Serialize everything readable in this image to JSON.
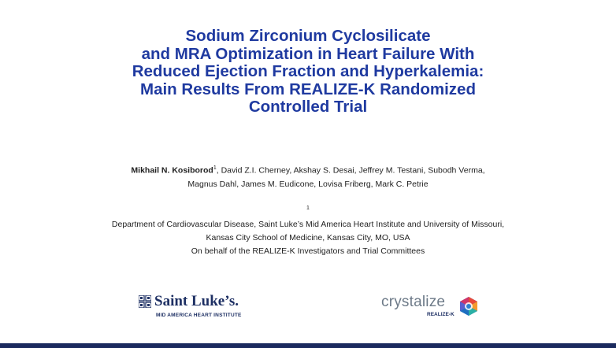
{
  "title": {
    "lines": [
      "Sodium Zirconium Cyclosilicate",
      "and MRA Optimization in Heart Failure With",
      "Reduced Ejection Fraction and Hyperkalemia:",
      "Main Results From REALIZE-K Randomized",
      "Controlled Trial"
    ]
  },
  "authors": {
    "lead": "Mikhail N. Kosiborod",
    "lead_sup": "1",
    "rest_line1": ", David Z.I. Cherney, Akshay S. Desai, Jeffrey M. Testani, Subodh Verma,",
    "line2": "Magnus Dahl, James M. Eudicone, Lovisa Friberg, Mark C. Petrie"
  },
  "affiliation": {
    "sup": "1",
    "line1": "Department of Cardiovascular Disease, Saint Luke’s Mid America Heart Institute and University of Missouri,",
    "line2": "Kansas City School of Medicine, Kansas City, MO, USA",
    "line3": "On behalf of the REALIZE-K Investigators and Trial Committees"
  },
  "logos": {
    "saint_lukes": {
      "name": "Saint Luke’s.",
      "sub": "MID AMERICA HEART INSTITUTE",
      "icon": "cross-icon"
    },
    "crystalize": {
      "name": "crystalize",
      "sub": "REALIZE-K",
      "icon": "hexagon-icon"
    }
  },
  "colors": {
    "title": "#1f3aa0",
    "navy": "#1d2f63",
    "footer_bar": "#1b2a5e",
    "crystalize_text": "#6d7a88"
  }
}
